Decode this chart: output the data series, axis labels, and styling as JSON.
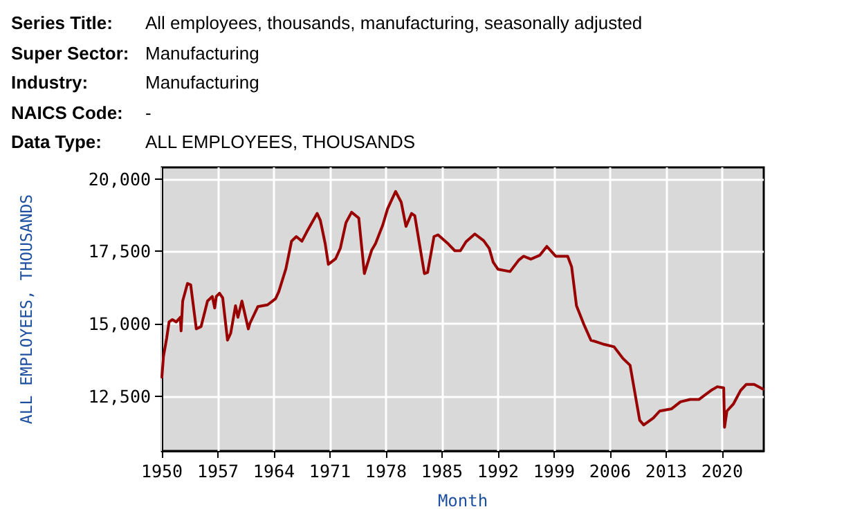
{
  "chart_data": {
    "type": "line",
    "xlabel": "Month",
    "ylabel": "ALL EMPLOYEES, THOUSANDS",
    "annotations": [
      "Series Title: All employees, thousands, manufacturing, seasonally adjusted",
      "Super Sector: Manufacturing",
      "Industry: Manufacturing",
      "NAICS Code: -",
      "Data Type: ALL EMPLOYEES, THOUSANDS"
    ],
    "series": [
      {
        "color": "#990000",
        "x": [
          1950,
          1950.2,
          1950.6,
          1950.9,
          1951.3,
          1951.8,
          1952.3,
          1952.4,
          1952.6,
          1953.2,
          1953.6,
          1954.3,
          1954.9,
          1955.7,
          1956.3,
          1956.6,
          1956.8,
          1957.2,
          1957.6,
          1958.2,
          1958.6,
          1959.2,
          1959.5,
          1960,
          1960.8,
          1961,
          1962,
          1963.2,
          1964.2,
          1964.6,
          1965.5,
          1966.2,
          1966.8,
          1967.5,
          1968.1,
          1969.4,
          1969.8,
          1970.4,
          1970.8,
          1971.7,
          1972.3,
          1973,
          1973.7,
          1974.6,
          1975.3,
          1976.2,
          1976.7,
          1977.6,
          1978.2,
          1979.2,
          1979.9,
          1980.5,
          1981.2,
          1981.6,
          1982.8,
          1983.2,
          1984,
          1984.5,
          1985.8,
          1986.6,
          1987.3,
          1988,
          1989.1,
          1990.2,
          1990.9,
          1991.4,
          1992,
          1993.5,
          1994.6,
          1995.2,
          1996.1,
          1997.2,
          1998.1,
          1999.2,
          2000.7,
          2001.2,
          2001.8,
          2002.7,
          2003.6,
          2004.4,
          2005.3,
          2006.5,
          2007.6,
          2008.5,
          2009.1,
          2009.7,
          2010.2,
          2011.4,
          2012.2,
          2013.7,
          2014.8,
          2016,
          2017.1,
          2018.6,
          2019.4,
          2020.2,
          2020.3,
          2020.6,
          2021.4,
          2022.3,
          2023,
          2024,
          2025.1
        ],
        "values": [
          13150,
          13870,
          14500,
          15060,
          15140,
          15060,
          15220,
          14750,
          15780,
          16390,
          16340,
          14820,
          14900,
          15780,
          15940,
          15540,
          15940,
          16050,
          15890,
          14430,
          14670,
          15620,
          15220,
          15780,
          14820,
          15010,
          15590,
          15650,
          15860,
          16100,
          16900,
          17850,
          18010,
          17850,
          18170,
          18810,
          18570,
          17770,
          17050,
          17240,
          17610,
          18490,
          18850,
          18650,
          16730,
          17530,
          17770,
          18410,
          18970,
          19570,
          19200,
          18360,
          18810,
          18730,
          16730,
          16770,
          18010,
          18070,
          17750,
          17520,
          17520,
          17830,
          18100,
          17870,
          17600,
          17120,
          16880,
          16800,
          17200,
          17330,
          17230,
          17360,
          17670,
          17330,
          17330,
          16960,
          15620,
          14990,
          14430,
          14360,
          14280,
          14200,
          13800,
          13560,
          12610,
          11660,
          11500,
          11740,
          11980,
          12060,
          12300,
          12380,
          12380,
          12690,
          12820,
          12780,
          11420,
          11980,
          12220,
          12690,
          12900,
          12900,
          12740
        ]
      }
    ],
    "xlim": [
      1950,
      2025.2
    ],
    "xticks": [
      1950,
      1957,
      1964,
      1971,
      1978,
      1985,
      1992,
      1999,
      2006,
      2013,
      2020
    ],
    "ylim": [
      10600,
      20400
    ],
    "yticks": [
      {
        "value": 12500,
        "label": "12,500"
      },
      {
        "value": 15000,
        "label": "15,000"
      },
      {
        "value": 17500,
        "label": "17,500"
      },
      {
        "value": 20000,
        "label": "20,000"
      }
    ],
    "grid": true,
    "marker": "none",
    "line_style": "solid"
  }
}
